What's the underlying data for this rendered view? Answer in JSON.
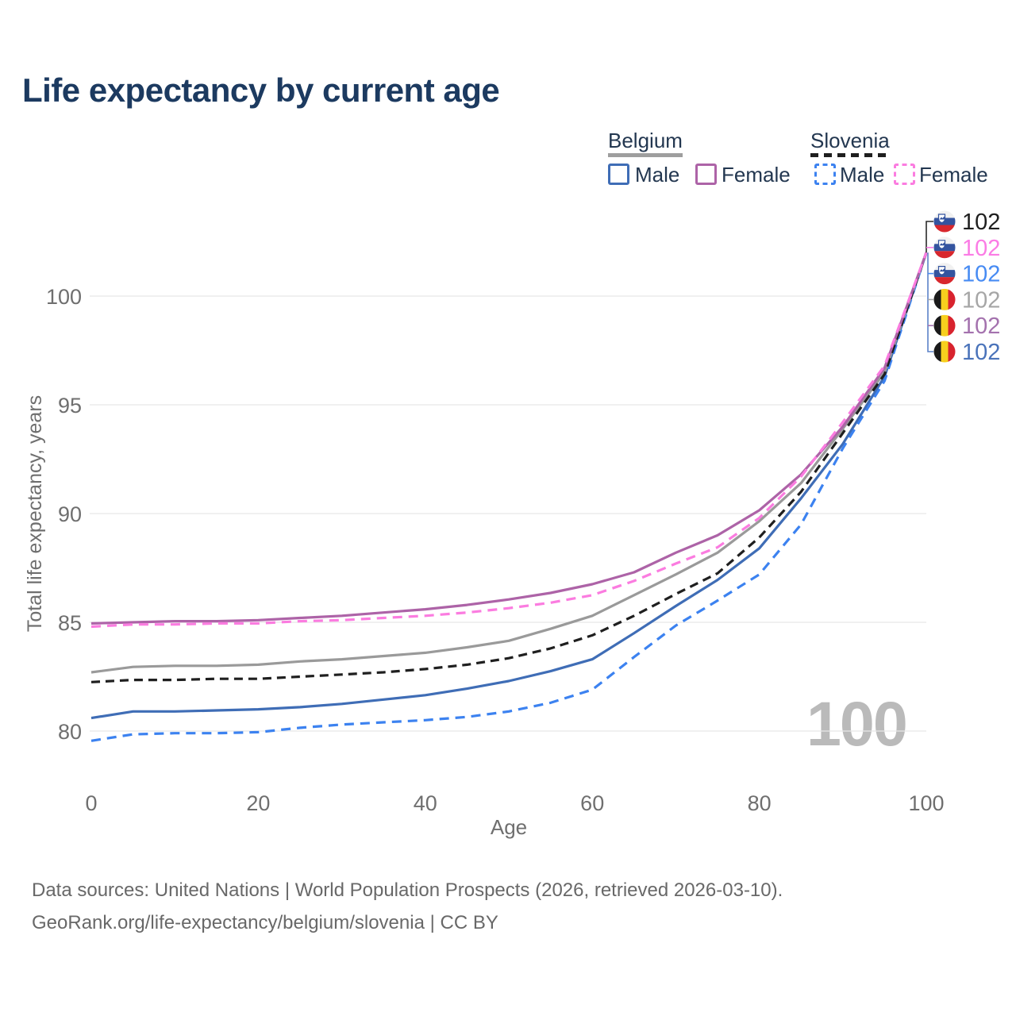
{
  "title": "Life expectancy by current age",
  "legend": {
    "groups": [
      {
        "label": "Belgium",
        "style": "solid",
        "color": "#9e9e9e"
      },
      {
        "label": "Slovenia",
        "style": "dashed",
        "color": "#1f1f1f"
      }
    ],
    "items": [
      {
        "label": "Male",
        "style": "solid",
        "color": "#3f6db6"
      },
      {
        "label": "Female",
        "style": "solid",
        "color": "#ad63a7"
      },
      {
        "label": "Male",
        "style": "dashed",
        "color": "#3c82f0"
      },
      {
        "label": "Female",
        "style": "dashed",
        "color": "#fb7ce0"
      }
    ]
  },
  "chart_data": {
    "type": "line",
    "title": "Life expectancy by current age",
    "xlabel": "Age",
    "ylabel": "Total life expectancy, years",
    "x_ticks": [
      0,
      20,
      40,
      60,
      80,
      100
    ],
    "y_ticks": [
      80,
      85,
      90,
      95,
      100
    ],
    "xlim": [
      0,
      100
    ],
    "ylim": [
      78.6,
      103
    ],
    "grid": "horizontal-only",
    "legend_position": "top-right",
    "x": [
      0,
      5,
      10,
      15,
      20,
      25,
      30,
      35,
      40,
      45,
      50,
      55,
      60,
      65,
      70,
      75,
      80,
      85,
      90,
      95,
      100
    ],
    "series": [
      {
        "name": "Belgium Male",
        "country": "belgium",
        "sex": "male",
        "style": "solid",
        "color": "#3f6db6",
        "values": [
          80.6,
          80.9,
          80.9,
          80.95,
          81.0,
          81.1,
          81.25,
          81.45,
          81.65,
          81.95,
          82.3,
          82.75,
          83.3,
          84.5,
          85.75,
          86.95,
          88.4,
          90.7,
          93.2,
          96.3,
          102
        ]
      },
      {
        "name": "Slovenia Male",
        "country": "slovenia",
        "sex": "male",
        "style": "dashed",
        "color": "#3c82f0",
        "values": [
          79.55,
          79.85,
          79.9,
          79.9,
          79.95,
          80.15,
          80.3,
          80.4,
          80.5,
          80.65,
          80.9,
          81.3,
          81.9,
          83.4,
          84.85,
          86.0,
          87.2,
          89.5,
          93.0,
          96.1,
          102
        ]
      },
      {
        "name": "Belgium Total",
        "country": "belgium",
        "sex": "total",
        "style": "solid",
        "color": "#9a9a9a",
        "values": [
          82.7,
          82.95,
          83.0,
          83.0,
          83.05,
          83.2,
          83.3,
          83.45,
          83.6,
          83.85,
          84.15,
          84.7,
          85.3,
          86.25,
          87.2,
          88.2,
          89.65,
          91.4,
          93.9,
          96.5,
          102
        ]
      },
      {
        "name": "Slovenia Total",
        "country": "slovenia",
        "sex": "total",
        "style": "dashed",
        "color": "#1f1f1f",
        "values": [
          82.25,
          82.35,
          82.35,
          82.4,
          82.4,
          82.5,
          82.6,
          82.7,
          82.85,
          83.05,
          83.35,
          83.8,
          84.4,
          85.3,
          86.3,
          87.25,
          88.9,
          91.0,
          93.7,
          96.4,
          102
        ]
      },
      {
        "name": "Belgium Female",
        "country": "belgium",
        "sex": "female",
        "style": "solid",
        "color": "#ad63a7",
        "values": [
          84.95,
          85.0,
          85.05,
          85.05,
          85.1,
          85.2,
          85.3,
          85.45,
          85.6,
          85.8,
          86.05,
          86.35,
          86.75,
          87.3,
          88.2,
          89.0,
          90.15,
          91.8,
          94.0,
          96.7,
          102
        ]
      },
      {
        "name": "Slovenia Female",
        "country": "slovenia",
        "sex": "female",
        "style": "dashed",
        "color": "#fb7ce0",
        "values": [
          84.8,
          84.9,
          84.9,
          84.95,
          84.95,
          85.05,
          85.1,
          85.2,
          85.3,
          85.45,
          85.65,
          85.9,
          86.25,
          86.9,
          87.7,
          88.45,
          89.8,
          91.7,
          94.2,
          96.8,
          102
        ]
      }
    ],
    "end_labels": [
      {
        "country": "slovenia",
        "series": "Slovenia Total",
        "value": "102",
        "color": "#1f1f1f"
      },
      {
        "country": "slovenia",
        "series": "Slovenia Female",
        "value": "102",
        "color": "#fb7ce5"
      },
      {
        "country": "slovenia",
        "series": "Slovenia Male",
        "value": "102",
        "color": "#478bf3"
      },
      {
        "country": "belgium",
        "series": "Belgium Total",
        "value": "102",
        "color": "#a6a6a6"
      },
      {
        "country": "belgium",
        "series": "Belgium Female",
        "value": "102",
        "color": "#a472ae"
      },
      {
        "country": "belgium",
        "series": "Belgium Male",
        "value": "102",
        "color": "#4a73ba"
      }
    ]
  },
  "watermark": "100",
  "flags": {
    "slovenia": {
      "white": "#f1f1f1",
      "blue": "#34549f",
      "red": "#d8272d"
    },
    "belgium": {
      "black": "#1a1a1a",
      "yellow": "#f7cf1e",
      "red": "#d8232e"
    }
  },
  "footer": {
    "line1": "Data sources: United Nations | World Population Prospects (2026, retrieved 2026-03-10).",
    "line2": "GeoRank.org/life-expectancy/belgium/slovenia | CC BY"
  }
}
